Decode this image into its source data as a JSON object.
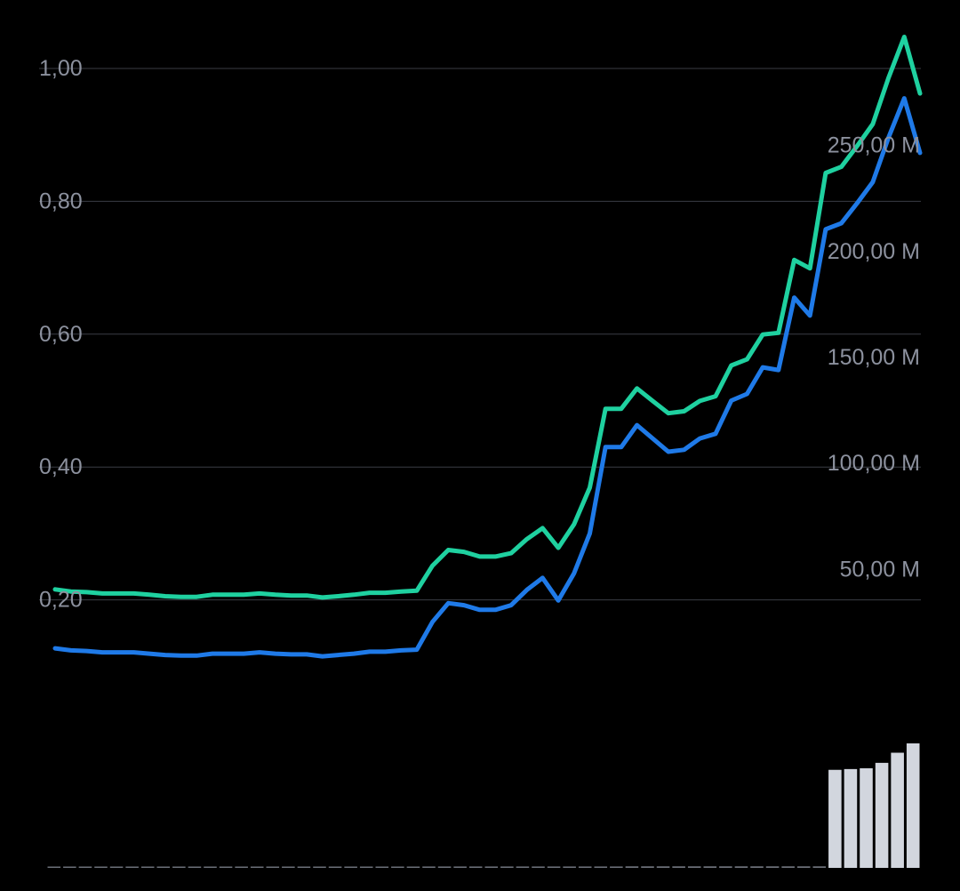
{
  "colors": {
    "background": "#000000",
    "grid": "#3a3d45",
    "axis_text": "#8c919e",
    "price_line": "#1f7ae8",
    "market_cap_line": "#1fd1a0",
    "volume_bar": "#d2d6de",
    "volume_stub": "#6b6f78"
  },
  "chart_data": {
    "type": "line",
    "grid": true,
    "legend": "none",
    "y_left": {
      "ticks": [
        "1,00",
        "0,80",
        "0,60",
        "0,40",
        "0,20"
      ],
      "tick_values": [
        1.0,
        0.8,
        0.6,
        0.4,
        0.2
      ],
      "range": [
        0.0,
        1.0
      ]
    },
    "y_right": {
      "ticks": [
        "250,00 M",
        "200,00 M",
        "150,00 M",
        "100,00 M",
        "50,00 M"
      ],
      "tick_values": [
        250,
        200,
        150,
        100,
        50
      ],
      "range": [
        -27.4,
        285.9
      ]
    },
    "series": [
      {
        "role": "price",
        "axis": "left",
        "values": [
          0.127,
          0.124,
          0.123,
          0.121,
          0.121,
          0.121,
          0.119,
          0.117,
          0.116,
          0.116,
          0.119,
          0.119,
          0.119,
          0.121,
          0.119,
          0.118,
          0.118,
          0.115,
          0.117,
          0.119,
          0.122,
          0.122,
          0.124,
          0.125,
          0.167,
          0.195,
          0.192,
          0.185,
          0.185,
          0.192,
          0.215,
          0.233,
          0.199,
          0.24,
          0.3,
          0.43,
          0.43,
          0.463,
          0.443,
          0.423,
          0.426,
          0.443,
          0.45,
          0.5,
          0.51,
          0.55,
          0.546,
          0.655,
          0.628,
          0.758,
          0.767,
          0.797,
          0.829,
          0.896,
          0.955,
          0.873
        ]
      },
      {
        "role": "market_cap",
        "axis": "right",
        "values": [
          40.2,
          39.2,
          38.9,
          38.3,
          38.3,
          38.3,
          37.7,
          37.0,
          36.7,
          36.7,
          37.7,
          37.7,
          37.7,
          38.3,
          37.7,
          37.3,
          37.3,
          36.4,
          37.0,
          37.7,
          38.6,
          38.6,
          39.2,
          39.6,
          51.4,
          58.8,
          57.9,
          55.7,
          55.7,
          57.3,
          63.9,
          69.1,
          59.8,
          70.9,
          88.2,
          125.4,
          125.4,
          135.0,
          129.1,
          123.3,
          124.2,
          129.1,
          131.3,
          145.8,
          148.7,
          160.4,
          161.2,
          195.6,
          191.6,
          236.6,
          239.5,
          249.3,
          259.7,
          281.5,
          300.8,
          274.1
        ]
      }
    ],
    "volume": {
      "values": [
        0.8,
        0.8,
        0.8,
        0.8,
        0.8,
        0.8,
        0.8,
        0.8,
        0.8,
        0.8,
        0.8,
        0.8,
        0.8,
        0.8,
        0.8,
        0.8,
        0.8,
        0.8,
        0.8,
        0.8,
        0.8,
        0.8,
        0.8,
        0.8,
        0.9,
        0.9,
        0.9,
        0.9,
        0.9,
        0.9,
        0.9,
        0.9,
        0.9,
        0.9,
        0.9,
        0.9,
        0.9,
        1.0,
        1.0,
        1.0,
        1.0,
        1.0,
        1.0,
        1.0,
        1.0,
        1.0,
        1.0,
        1.0,
        1.0,
        1.0,
        63.0,
        63.5,
        64.0,
        67.5,
        74.0,
        80.0
      ]
    }
  }
}
